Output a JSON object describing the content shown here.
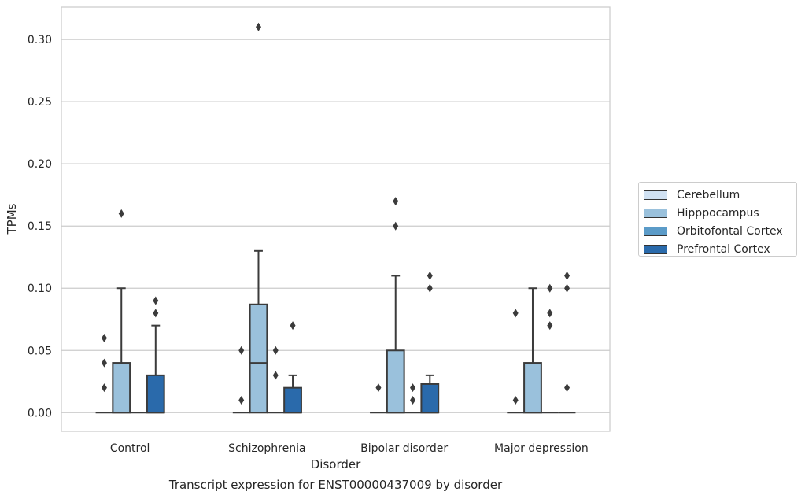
{
  "chart_data": {
    "type": "box",
    "title": "",
    "caption": "Transcript expression for ENST00000437009 by disorder",
    "xlabel": "Disorder",
    "ylabel": "TPMs",
    "ylim": [
      -0.015,
      0.326
    ],
    "yticks": [
      "0.00",
      "0.05",
      "0.10",
      "0.15",
      "0.20",
      "0.25",
      "0.30"
    ],
    "categories": [
      "Control",
      "Schizophrenia",
      "Bipolar disorder",
      "Major depression"
    ],
    "grid": true,
    "legend_position": "right",
    "series": [
      {
        "name": "Cerebellum",
        "color": "#d0e1f2",
        "boxes": [
          {
            "q1": 0,
            "median": 0,
            "q3": 0,
            "whisker_low": 0,
            "whisker_high": 0,
            "outliers": []
          },
          {
            "q1": 0,
            "median": 0,
            "q3": 0,
            "whisker_low": 0,
            "whisker_high": 0,
            "outliers": []
          },
          {
            "q1": 0,
            "median": 0,
            "q3": 0,
            "whisker_low": 0,
            "whisker_high": 0,
            "outliers": []
          },
          {
            "q1": 0,
            "median": 0,
            "q3": 0,
            "whisker_low": 0,
            "whisker_high": 0,
            "outliers": []
          }
        ]
      },
      {
        "name": "Hipppocampus",
        "color": "#9ac1dc",
        "boxes": [
          {
            "q1": 0,
            "median": 0,
            "q3": 0.04,
            "whisker_low": 0,
            "whisker_high": 0.1,
            "outliers": [
              0.16
            ]
          },
          {
            "q1": 0,
            "median": 0.04,
            "q3": 0.087,
            "whisker_low": 0,
            "whisker_high": 0.13,
            "outliers": [
              0.31
            ]
          },
          {
            "q1": 0,
            "median": 0,
            "q3": 0.05,
            "whisker_low": 0,
            "whisker_high": 0.11,
            "outliers": [
              0.15,
              0.17
            ]
          },
          {
            "q1": 0,
            "median": 0,
            "q3": 0.04,
            "whisker_low": 0,
            "whisker_high": 0.1,
            "outliers": []
          }
        ]
      },
      {
        "name": "Orbitofontal Cortex",
        "color": "#5b9bc8",
        "boxes": [
          {
            "q1": 0,
            "median": 0,
            "q3": 0,
            "whisker_low": 0,
            "whisker_high": 0,
            "outliers": []
          },
          {
            "q1": 0,
            "median": 0,
            "q3": 0,
            "whisker_low": 0,
            "whisker_high": 0,
            "outliers": [
              0.03,
              0.05
            ]
          },
          {
            "q1": 0,
            "median": 0,
            "q3": 0,
            "whisker_low": 0,
            "whisker_high": 0,
            "outliers": [
              0.01,
              0.02
            ]
          },
          {
            "q1": 0,
            "median": 0,
            "q3": 0,
            "whisker_low": 0,
            "whisker_high": 0,
            "outliers": [
              0.07,
              0.08,
              0.1
            ]
          }
        ]
      },
      {
        "name": "Prefrontal Cortex",
        "color": "#2a6aab",
        "boxes": [
          {
            "q1": 0,
            "median": 0,
            "q3": 0.03,
            "whisker_low": 0,
            "whisker_high": 0.07,
            "outliers": [
              0.08,
              0.09
            ]
          },
          {
            "q1": 0,
            "median": 0,
            "q3": 0.02,
            "whisker_low": 0,
            "whisker_high": 0.03,
            "outliers": [
              0.07
            ]
          },
          {
            "q1": 0,
            "median": 0,
            "q3": 0.023,
            "whisker_low": 0,
            "whisker_high": 0.03,
            "outliers": [
              0.1,
              0.11
            ]
          },
          {
            "q1": 0,
            "median": 0,
            "q3": 0,
            "whisker_low": 0,
            "whisker_high": 0,
            "outliers": [
              0.02,
              0.1,
              0.11
            ]
          }
        ]
      }
    ],
    "extra_outliers": [
      {
        "category": "Control",
        "series": "Cerebellum",
        "values": [
          0.02,
          0.04,
          0.06
        ]
      },
      {
        "category": "Schizophrenia",
        "series": "Cerebellum",
        "values": [
          0.01,
          0.05
        ]
      },
      {
        "category": "Bipolar disorder",
        "series": "Cerebellum",
        "values": [
          0.02
        ]
      },
      {
        "category": "Major depression",
        "series": "Cerebellum",
        "values": [
          0.01,
          0.08
        ]
      }
    ]
  }
}
